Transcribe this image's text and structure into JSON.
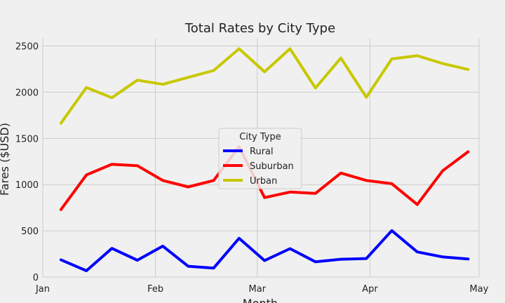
{
  "chart_data": {
    "type": "line",
    "title": "Total Rates by City Type",
    "xlabel": "Month",
    "ylabel": "Fares ($USD)",
    "xlim": [
      "2019-01-01",
      "2019-05-01"
    ],
    "ylim": [
      0,
      2580
    ],
    "xticks": [
      {
        "date": "2019-01-01",
        "label": "Jan"
      },
      {
        "date": "2019-02-01",
        "label": "Feb"
      },
      {
        "date": "2019-03-01",
        "label": "Mar"
      },
      {
        "date": "2019-04-01",
        "label": "Apr"
      },
      {
        "date": "2019-05-01",
        "label": "May"
      }
    ],
    "yticks": [
      0,
      500,
      1000,
      1500,
      2000,
      2500
    ],
    "grid": true,
    "legend": {
      "title": "City Type",
      "position": "center"
    },
    "x": [
      "2019-01-06",
      "2019-01-13",
      "2019-01-20",
      "2019-01-27",
      "2019-02-03",
      "2019-02-10",
      "2019-02-17",
      "2019-02-24",
      "2019-03-03",
      "2019-03-10",
      "2019-03-17",
      "2019-03-24",
      "2019-03-31",
      "2019-04-07",
      "2019-04-14",
      "2019-04-21",
      "2019-04-28"
    ],
    "series": [
      {
        "name": "Rural",
        "color": "#0000ff",
        "values": [
          187,
          68,
          310,
          182,
          335,
          117,
          97,
          420,
          178,
          307,
          165,
          193,
          200,
          502,
          272,
          218,
          195
        ]
      },
      {
        "name": "Suburban",
        "color": "#ff0000",
        "values": [
          730,
          1105,
          1220,
          1205,
          1045,
          975,
          1045,
          1410,
          860,
          920,
          905,
          1125,
          1045,
          1010,
          785,
          1150,
          1355
        ]
      },
      {
        "name": "Urban",
        "color": "#c8c800",
        "values": [
          1665,
          2050,
          1940,
          2130,
          2085,
          2160,
          2235,
          2470,
          2220,
          2470,
          2045,
          2370,
          1945,
          2360,
          2395,
          2310,
          2245
        ]
      }
    ]
  }
}
